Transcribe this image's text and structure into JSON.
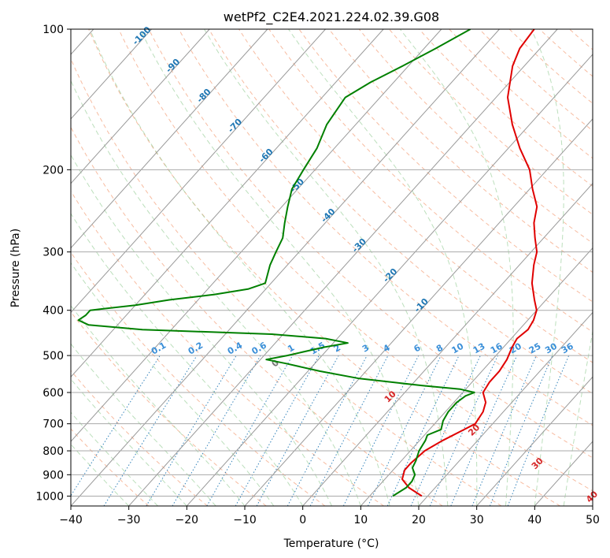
{
  "chart_data": {
    "type": "line",
    "title": "wetPf2_C2E4.2021.224.02.39.G08",
    "xlabel": "Temperature (°C)",
    "ylabel": "Pressure (hPa)",
    "xlim": [
      -40,
      50
    ],
    "ylim": [
      1050,
      100
    ],
    "y_scale": "log",
    "grid": true,
    "x_ticks": [
      -40,
      -30,
      -20,
      -10,
      0,
      10,
      20,
      30,
      40,
      50
    ],
    "y_ticks": [
      100,
      200,
      300,
      400,
      500,
      600,
      700,
      800,
      900,
      1000
    ],
    "series": [
      {
        "role": "temperature",
        "color": "#e00000",
        "p": [
          1000,
          960,
          920,
          880,
          850,
          800,
          760,
          720,
          700,
          660,
          630,
          600,
          570,
          540,
          510,
          480,
          460,
          440,
          420,
          400,
          380,
          350,
          320,
          300,
          280,
          260,
          240,
          220,
          200,
          180,
          160,
          140,
          120,
          110,
          100
        ],
        "t": [
          19.0,
          15.5,
          13.0,
          12.0,
          12.0,
          12.5,
          14.0,
          16.0,
          17.0,
          16.5,
          15.5,
          13.5,
          13.0,
          13.0,
          12.5,
          11.5,
          11.0,
          11.5,
          11.0,
          10.0,
          8.0,
          5.0,
          2.5,
          1.0,
          -1.5,
          -4.0,
          -6.0,
          -9.5,
          -13.0,
          -18.0,
          -23.0,
          -28.0,
          -32.0,
          -33.5,
          -34.0
        ]
      },
      {
        "role": "dewpoint",
        "color": "#008000",
        "p": [
          1000,
          960,
          930,
          900,
          870,
          840,
          800,
          760,
          740,
          720,
          690,
          660,
          630,
          610,
          600,
          590,
          580,
          560,
          540,
          520,
          510,
          500,
          480,
          470,
          460,
          450,
          440,
          430,
          420,
          410,
          400,
          390,
          380,
          370,
          360,
          350,
          320,
          300,
          280,
          260,
          240,
          220,
          200,
          180,
          160,
          140,
          130,
          120,
          110,
          100
        ],
        "td": [
          14.0,
          15.0,
          15.0,
          14.5,
          13.0,
          12.5,
          11.5,
          11.0,
          10.5,
          12.0,
          11.0,
          10.5,
          10.5,
          11.0,
          12.0,
          9.0,
          2.0,
          -10.0,
          -18.0,
          -25.0,
          -29.0,
          -26.0,
          -21.0,
          -17.5,
          -22.0,
          -32.0,
          -55.0,
          -65.0,
          -67.5,
          -67.0,
          -67.0,
          -60.0,
          -55.0,
          -48.0,
          -43.0,
          -41.0,
          -43.0,
          -44.0,
          -45.0,
          -47.0,
          -49.0,
          -51.0,
          -52.0,
          -53.0,
          -55.0,
          -56.0,
          -54.0,
          -51.0,
          -48.0,
          -45.0
        ]
      }
    ],
    "isotherm_labels": [
      "-100",
      "-90",
      "-80",
      "-70",
      "-60",
      "-50",
      "-40",
      "-30",
      "-20",
      "-10"
    ],
    "mixing_ratio_labels": [
      "0.1",
      "0.2",
      "0.4",
      "0.6",
      "1",
      "1.5",
      "2",
      "3",
      "4",
      "6",
      "8",
      "10",
      "13",
      "16",
      "20",
      "25",
      "30",
      "36"
    ],
    "moist_adiabat_labels": [
      "0",
      "10",
      "20",
      "30",
      "40"
    ]
  }
}
